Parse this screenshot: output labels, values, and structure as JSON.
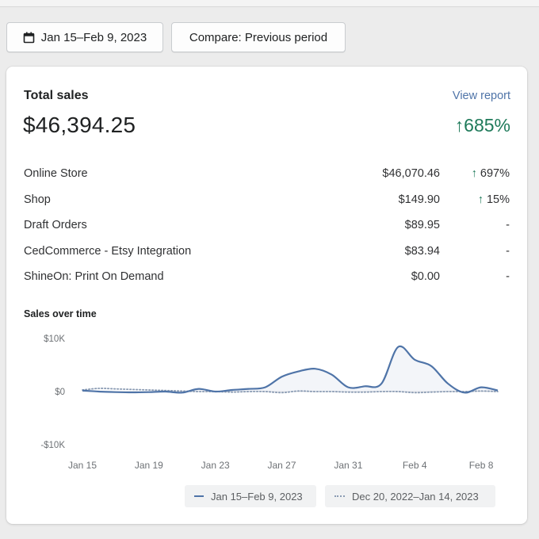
{
  "toolbar": {
    "date_range_label": "Jan 15–Feb 9, 2023",
    "compare_label": "Compare: Previous period"
  },
  "card": {
    "title": "Total sales",
    "view_report": "View report",
    "total": "$46,394.25",
    "total_change": "↑685%",
    "rows": [
      {
        "name": "Online Store",
        "value": "$46,070.46",
        "arrow": "↑",
        "change": "697%"
      },
      {
        "name": "Shop",
        "value": "$149.90",
        "arrow": "↑",
        "change": "15%"
      },
      {
        "name": "Draft Orders",
        "value": "$89.95",
        "arrow": "",
        "change": "-"
      },
      {
        "name": "CedCommerce - Etsy Integration",
        "value": "$83.94",
        "arrow": "",
        "change": "-"
      },
      {
        "name": "ShineOn: Print On Demand",
        "value": "$0.00",
        "arrow": "",
        "change": "-"
      }
    ]
  },
  "colors": {
    "accent": "#4f74a8",
    "positive": "#1f7a5a",
    "previous_series": "#8a9bb3"
  },
  "icons": {
    "date_button": "calendar-icon"
  },
  "chart_data": {
    "type": "line",
    "title": "Sales over time",
    "xlabel": "",
    "ylabel": "",
    "ylim": [
      -10000,
      10000
    ],
    "ytick_labels": [
      "$10K",
      "$0",
      "-$10K"
    ],
    "yticks": [
      10000,
      0,
      -10000
    ],
    "xtick_labels": [
      "Jan 15",
      "Jan 19",
      "Jan 23",
      "Jan 27",
      "Jan 31",
      "Feb 4",
      "Feb 8"
    ],
    "xtick_index": [
      0,
      4,
      8,
      12,
      16,
      20,
      24
    ],
    "x": [
      "Jan 15",
      "Jan 16",
      "Jan 17",
      "Jan 18",
      "Jan 19",
      "Jan 20",
      "Jan 21",
      "Jan 22",
      "Jan 23",
      "Jan 24",
      "Jan 25",
      "Jan 26",
      "Jan 27",
      "Jan 28",
      "Jan 29",
      "Jan 30",
      "Jan 31",
      "Feb 1",
      "Feb 2",
      "Feb 3",
      "Feb 4",
      "Feb 5",
      "Feb 6",
      "Feb 7",
      "Feb 8",
      "Feb 9"
    ],
    "grid": false,
    "legend_position": "bottom",
    "series": [
      {
        "name": "Jan 15–Feb 9, 2023",
        "style": "solid",
        "values": [
          200,
          0,
          -100,
          -150,
          -100,
          0,
          -200,
          500,
          0,
          300,
          500,
          800,
          2800,
          3800,
          4300,
          3200,
          800,
          1000,
          1500,
          8400,
          6000,
          4800,
          1500,
          -200,
          800,
          200
        ]
      },
      {
        "name": "Dec 20, 2022–Jan 14, 2023",
        "style": "dotted",
        "values": [
          300,
          600,
          500,
          400,
          300,
          200,
          100,
          0,
          0,
          -100,
          0,
          0,
          -200,
          100,
          0,
          0,
          -100,
          -100,
          0,
          0,
          -200,
          -100,
          0,
          0,
          100,
          0
        ]
      }
    ]
  }
}
